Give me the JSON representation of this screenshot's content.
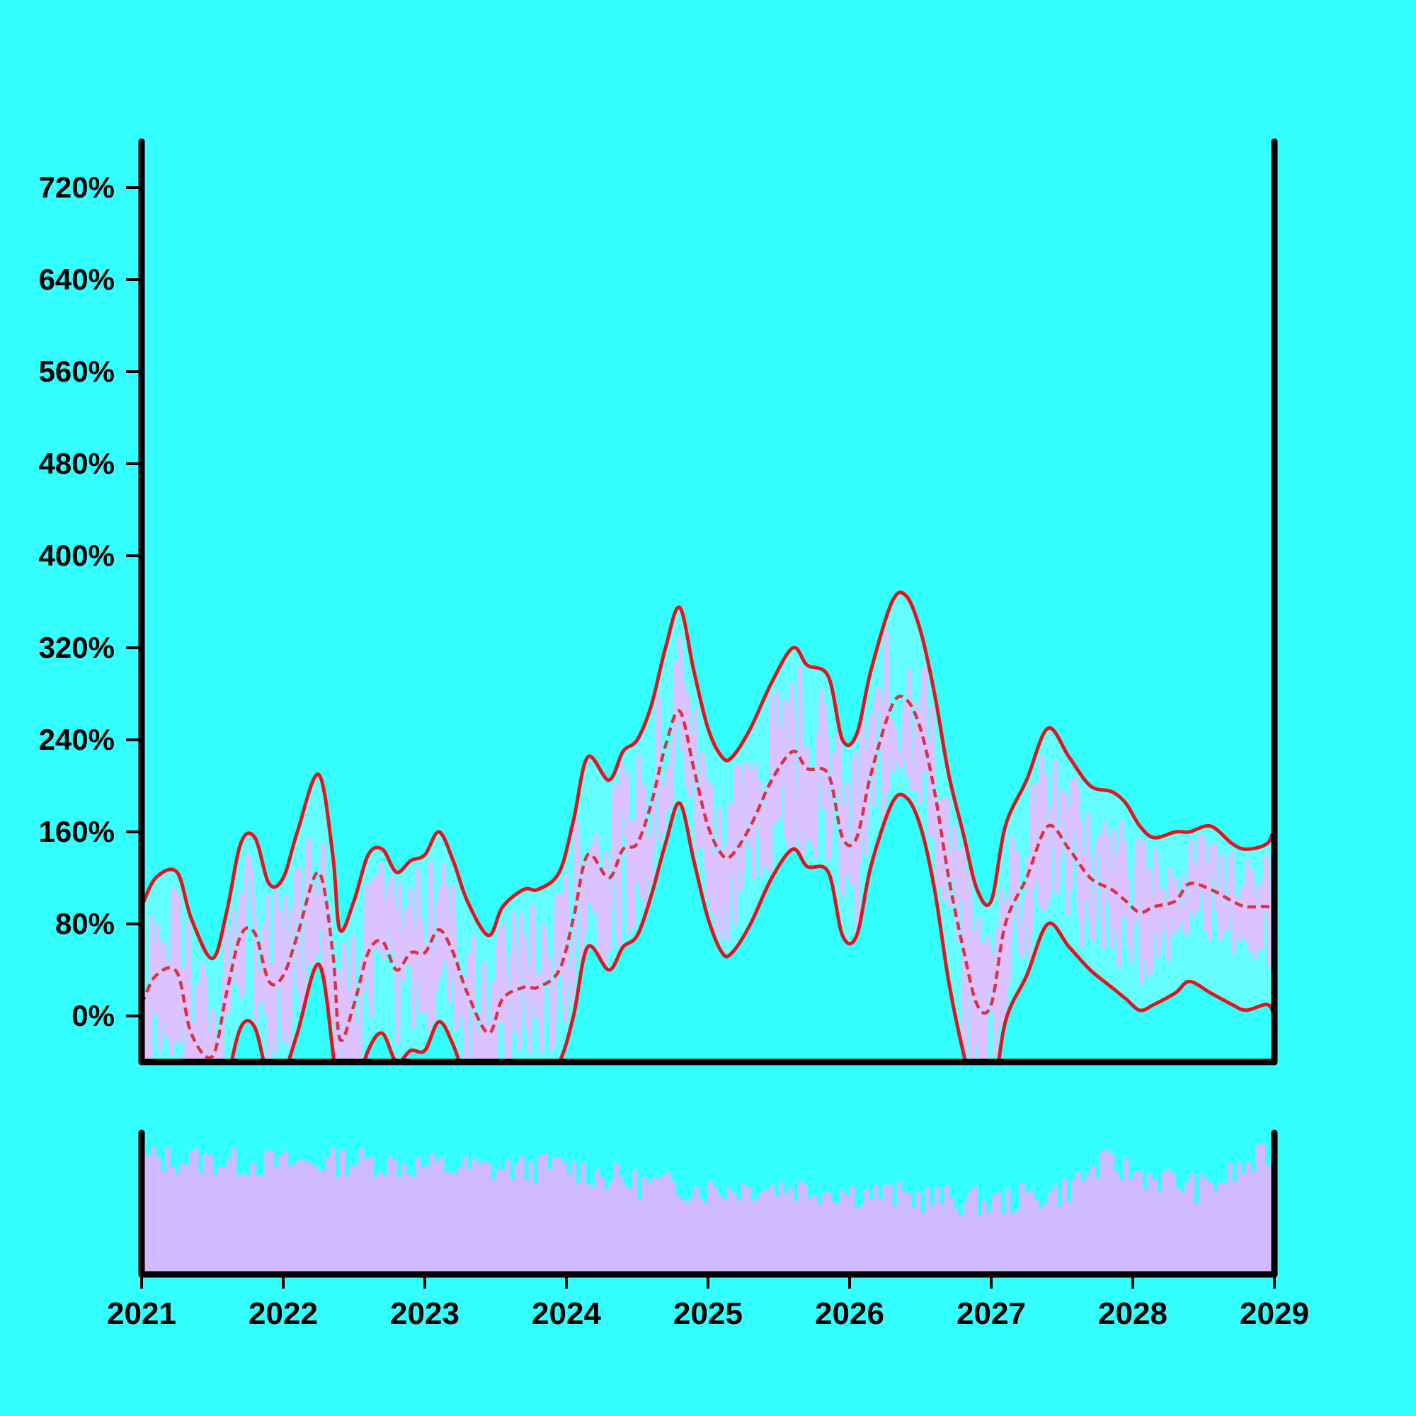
{
  "chart_data": {
    "type": "line",
    "title": "",
    "xlabel": "",
    "ylabel": "",
    "x_ticks": [
      "2021",
      "2022",
      "2023",
      "2024",
      "2025",
      "2026",
      "2027",
      "2028",
      "2029"
    ],
    "y_ticks": [
      "0%",
      "80%",
      "160%",
      "240%",
      "320%",
      "400%",
      "480%",
      "560%",
      "640%",
      "720%"
    ],
    "y_tick_values": [
      0,
      80,
      160,
      240,
      320,
      400,
      480,
      560,
      640,
      720
    ],
    "xlim": [
      2021,
      2029
    ],
    "ylim": [
      -40,
      760
    ],
    "grid": false,
    "colors": {
      "background": "#33ffff",
      "band_fill": "#66ffff",
      "raw_series": "#dcc2ff",
      "lines": "#e0161e",
      "volume": "#d0baff",
      "axes": "#000000"
    },
    "series": [
      {
        "role": "upper band",
        "x": [
          2021.0,
          2021.1,
          2021.25,
          2021.35,
          2021.5,
          2021.6,
          2021.7,
          2021.8,
          2021.9,
          2022.0,
          2022.1,
          2022.25,
          2022.35,
          2022.4,
          2022.5,
          2022.6,
          2022.7,
          2022.8,
          2022.9,
          2023.0,
          2023.1,
          2023.2,
          2023.3,
          2023.45,
          2023.55,
          2023.7,
          2023.8,
          2023.95,
          2024.05,
          2024.15,
          2024.3,
          2024.4,
          2024.5,
          2024.6,
          2024.7,
          2024.8,
          2024.9,
          2025.0,
          2025.1,
          2025.17,
          2025.3,
          2025.45,
          2025.6,
          2025.7,
          2025.85,
          2025.95,
          2026.05,
          2026.15,
          2026.3,
          2026.4,
          2026.5,
          2026.6,
          2026.7,
          2026.8,
          2026.9,
          2027.0,
          2027.1,
          2027.25,
          2027.4,
          2027.55,
          2027.7,
          2027.85,
          2027.95,
          2028.05,
          2028.15,
          2028.3,
          2028.4,
          2028.55,
          2028.7,
          2028.8,
          2028.95,
          2029.0
        ],
        "y": [
          95,
          120,
          125,
          85,
          50,
          90,
          150,
          155,
          115,
          120,
          160,
          210,
          140,
          75,
          100,
          140,
          145,
          125,
          135,
          140,
          160,
          135,
          100,
          70,
          95,
          110,
          110,
          125,
          170,
          225,
          205,
          230,
          240,
          270,
          320,
          355,
          300,
          250,
          225,
          225,
          250,
          290,
          320,
          305,
          295,
          240,
          245,
          300,
          360,
          365,
          335,
          280,
          210,
          160,
          110,
          100,
          165,
          205,
          250,
          225,
          200,
          195,
          185,
          165,
          155,
          160,
          160,
          165,
          150,
          145,
          150,
          165
        ]
      },
      {
        "role": "center line",
        "x": [
          2021.0,
          2021.1,
          2021.25,
          2021.35,
          2021.5,
          2021.6,
          2021.7,
          2021.8,
          2021.9,
          2022.0,
          2022.1,
          2022.25,
          2022.35,
          2022.4,
          2022.5,
          2022.6,
          2022.7,
          2022.8,
          2022.9,
          2023.0,
          2023.1,
          2023.2,
          2023.3,
          2023.45,
          2023.55,
          2023.7,
          2023.8,
          2023.95,
          2024.05,
          2024.15,
          2024.3,
          2024.4,
          2024.5,
          2024.6,
          2024.7,
          2024.8,
          2024.9,
          2025.0,
          2025.1,
          2025.17,
          2025.3,
          2025.45,
          2025.6,
          2025.7,
          2025.85,
          2025.95,
          2026.05,
          2026.15,
          2026.3,
          2026.4,
          2026.5,
          2026.6,
          2026.7,
          2026.8,
          2026.9,
          2027.0,
          2027.1,
          2027.25,
          2027.4,
          2027.55,
          2027.7,
          2027.85,
          2027.95,
          2028.05,
          2028.15,
          2028.3,
          2028.4,
          2028.55,
          2028.7,
          2028.8,
          2028.95,
          2029.0
        ],
        "y": [
          10,
          35,
          38,
          -15,
          -35,
          20,
          70,
          72,
          30,
          35,
          70,
          125,
          55,
          -20,
          10,
          55,
          65,
          40,
          55,
          55,
          75,
          55,
          20,
          -15,
          15,
          25,
          25,
          40,
          85,
          140,
          120,
          145,
          150,
          185,
          235,
          265,
          215,
          165,
          140,
          140,
          165,
          205,
          230,
          215,
          210,
          155,
          155,
          210,
          270,
          275,
          250,
          195,
          120,
          60,
          10,
          10,
          80,
          120,
          165,
          145,
          120,
          110,
          100,
          90,
          95,
          100,
          115,
          110,
          100,
          95,
          95,
          90
        ]
      },
      {
        "role": "lower band",
        "x": [
          2021.0,
          2021.1,
          2021.25,
          2021.35,
          2021.5,
          2021.6,
          2021.7,
          2021.8,
          2021.9,
          2022.0,
          2022.1,
          2022.25,
          2022.35,
          2022.4,
          2022.5,
          2022.6,
          2022.7,
          2022.8,
          2022.9,
          2023.0,
          2023.1,
          2023.2,
          2023.3,
          2023.45,
          2023.55,
          2023.7,
          2023.8,
          2023.95,
          2024.05,
          2024.15,
          2024.3,
          2024.4,
          2024.5,
          2024.6,
          2024.7,
          2024.8,
          2024.9,
          2025.0,
          2025.1,
          2025.17,
          2025.3,
          2025.45,
          2025.6,
          2025.7,
          2025.85,
          2025.95,
          2026.05,
          2026.15,
          2026.3,
          2026.4,
          2026.5,
          2026.6,
          2026.7,
          2026.8,
          2026.9,
          2027.0,
          2027.1,
          2027.25,
          2027.4,
          2027.55,
          2027.7,
          2027.85,
          2027.95,
          2028.05,
          2028.15,
          2028.3,
          2028.4,
          2028.55,
          2028.7,
          2028.8,
          2028.95,
          2029.0
        ],
        "y": [
          -75,
          -50,
          -48,
          -100,
          -120,
          -60,
          -10,
          -10,
          -55,
          -50,
          -15,
          45,
          -30,
          -100,
          -70,
          -30,
          -15,
          -40,
          -30,
          -30,
          -5,
          -25,
          -60,
          -100,
          -70,
          -55,
          -60,
          -40,
          0,
          60,
          40,
          60,
          70,
          105,
          150,
          185,
          135,
          85,
          55,
          55,
          80,
          120,
          145,
          130,
          125,
          70,
          70,
          130,
          185,
          190,
          165,
          110,
          30,
          -30,
          -75,
          -80,
          -5,
          35,
          80,
          60,
          40,
          25,
          15,
          5,
          10,
          20,
          30,
          20,
          10,
          5,
          10,
          0
        ]
      }
    ],
    "volume_panel": {
      "type": "bar",
      "x_range": [
        2021,
        2029
      ],
      "bar_count": 240,
      "relative_level_profile": {
        "x": [
          2021.0,
          2021.5,
          2022.0,
          2022.5,
          2023.0,
          2023.5,
          2024.0,
          2024.5,
          2025.0,
          2025.5,
          2026.0,
          2026.5,
          2027.0,
          2027.5,
          2027.8,
          2028.0,
          2028.5,
          2029.0
        ],
        "y": [
          0.82,
          0.8,
          0.78,
          0.8,
          0.76,
          0.74,
          0.76,
          0.64,
          0.6,
          0.62,
          0.58,
          0.54,
          0.5,
          0.58,
          0.78,
          0.72,
          0.6,
          0.86
        ]
      }
    }
  }
}
